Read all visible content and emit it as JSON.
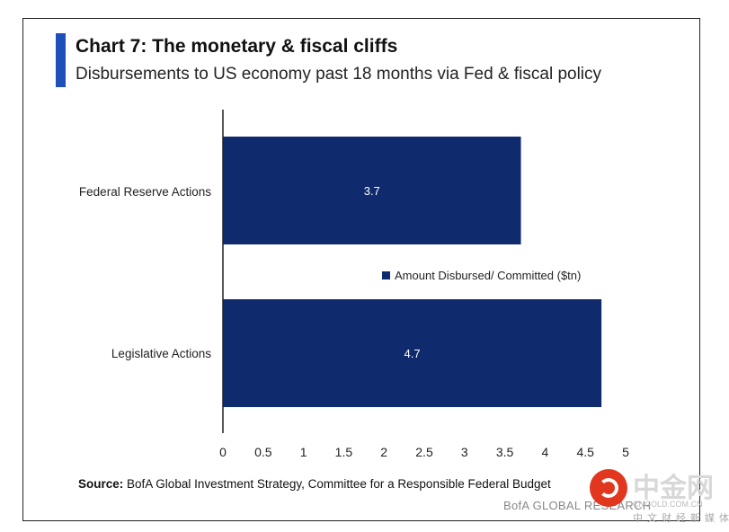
{
  "header": {
    "title": "Chart 7: The monetary & fiscal cliffs",
    "subtitle": "Disbursements to US economy past 18 months via Fed & fiscal policy"
  },
  "footer": {
    "source_label": "Source:",
    "source_text": "BofA Global Investment Strategy, Committee for a Responsible  Federal Budget",
    "brand": "BofA GLOBAL RESEARCH"
  },
  "watermark": {
    "name": "中金网",
    "domain": "CNGOLD.COM.CN",
    "slogan": "中文财经新媒体"
  },
  "colors": {
    "bar": "#102a6e",
    "accent": "#1f4fb8",
    "axis": "#222222"
  },
  "chart_data": {
    "type": "bar",
    "orientation": "horizontal",
    "categories": [
      "Federal Reserve Actions",
      "Legislative Actions"
    ],
    "series": [
      {
        "name": "Amount Disbursed/ Committed ($tn)",
        "values": [
          3.7,
          4.7
        ]
      }
    ],
    "data_labels": [
      "3.7",
      "4.7"
    ],
    "xlim": [
      0,
      5
    ],
    "x_ticks": [
      "0",
      "0.5",
      "1",
      "1.5",
      "2",
      "2.5",
      "3",
      "3.5",
      "4",
      "4.5",
      "5"
    ],
    "grid": false,
    "legend_position": "center-right"
  }
}
